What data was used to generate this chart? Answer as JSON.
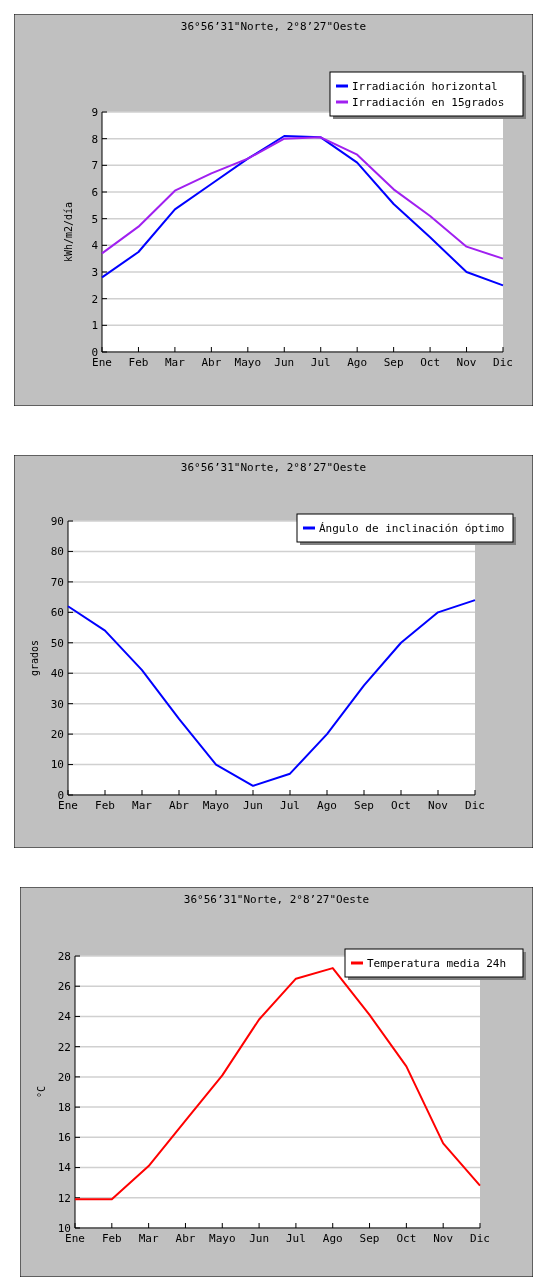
{
  "chart_data": [
    {
      "type": "line",
      "title": "36°56’31\"Norte, 2°8’27\"Oeste",
      "ylabel": "kWh/m2/día",
      "categories": [
        "Ene",
        "Feb",
        "Mar",
        "Abr",
        "Mayo",
        "Jun",
        "Jul",
        "Ago",
        "Sep",
        "Oct",
        "Nov",
        "Dic"
      ],
      "series": [
        {
          "name": "Irradiación horizontal",
          "color": "#0000ff",
          "values": [
            2.8,
            3.75,
            5.35,
            6.3,
            7.25,
            8.1,
            8.05,
            7.1,
            5.55,
            4.3,
            3.0,
            2.5
          ]
        },
        {
          "name": "Irradiación en 15grados",
          "color": "#a020f0",
          "values": [
            3.7,
            4.7,
            6.05,
            6.7,
            7.25,
            8.0,
            8.05,
            7.4,
            6.1,
            5.1,
            3.95,
            3.5
          ]
        }
      ],
      "ylim": [
        0,
        9
      ],
      "yticks": [
        0,
        1,
        2,
        3,
        4,
        5,
        6,
        7,
        8,
        9
      ],
      "grid": "y",
      "legend": "top right",
      "marker": "none",
      "line_style": "solid"
    },
    {
      "type": "line",
      "title": "36°56’31\"Norte, 2°8’27\"Oeste",
      "ylabel": "grados",
      "categories": [
        "Ene",
        "Feb",
        "Mar",
        "Abr",
        "Mayo",
        "Jun",
        "Jul",
        "Ago",
        "Sep",
        "Oct",
        "Nov",
        "Dic"
      ],
      "series": [
        {
          "name": "Ángulo de inclinación óptimo",
          "color": "#0000ff",
          "values": [
            62,
            54,
            41,
            25,
            10,
            3,
            7,
            20,
            36,
            50,
            60,
            64
          ]
        }
      ],
      "ylim": [
        0,
        90
      ],
      "yticks": [
        0,
        10,
        20,
        30,
        40,
        50,
        60,
        70,
        80,
        90
      ],
      "grid": "y",
      "legend": "top right",
      "marker": "none",
      "line_style": "solid"
    },
    {
      "type": "line",
      "title": "36°56’31\"Norte, 2°8’27\"Oeste",
      "ylabel": "°C",
      "categories": [
        "Ene",
        "Feb",
        "Mar",
        "Abr",
        "Mayo",
        "Jun",
        "Jul",
        "Ago",
        "Sep",
        "Oct",
        "Nov",
        "Dic"
      ],
      "series": [
        {
          "name": "Temperatura media 24h",
          "color": "#ff0000",
          "values": [
            11.9,
            11.9,
            14.1,
            17.1,
            20.1,
            23.8,
            26.5,
            27.2,
            24.1,
            20.7,
            15.6,
            12.8
          ]
        }
      ],
      "ylim": [
        10,
        28
      ],
      "yticks": [
        10,
        12,
        14,
        16,
        18,
        20,
        22,
        24,
        26,
        28
      ],
      "grid": "y",
      "legend": "top right",
      "marker": "none",
      "line_style": "solid"
    }
  ]
}
